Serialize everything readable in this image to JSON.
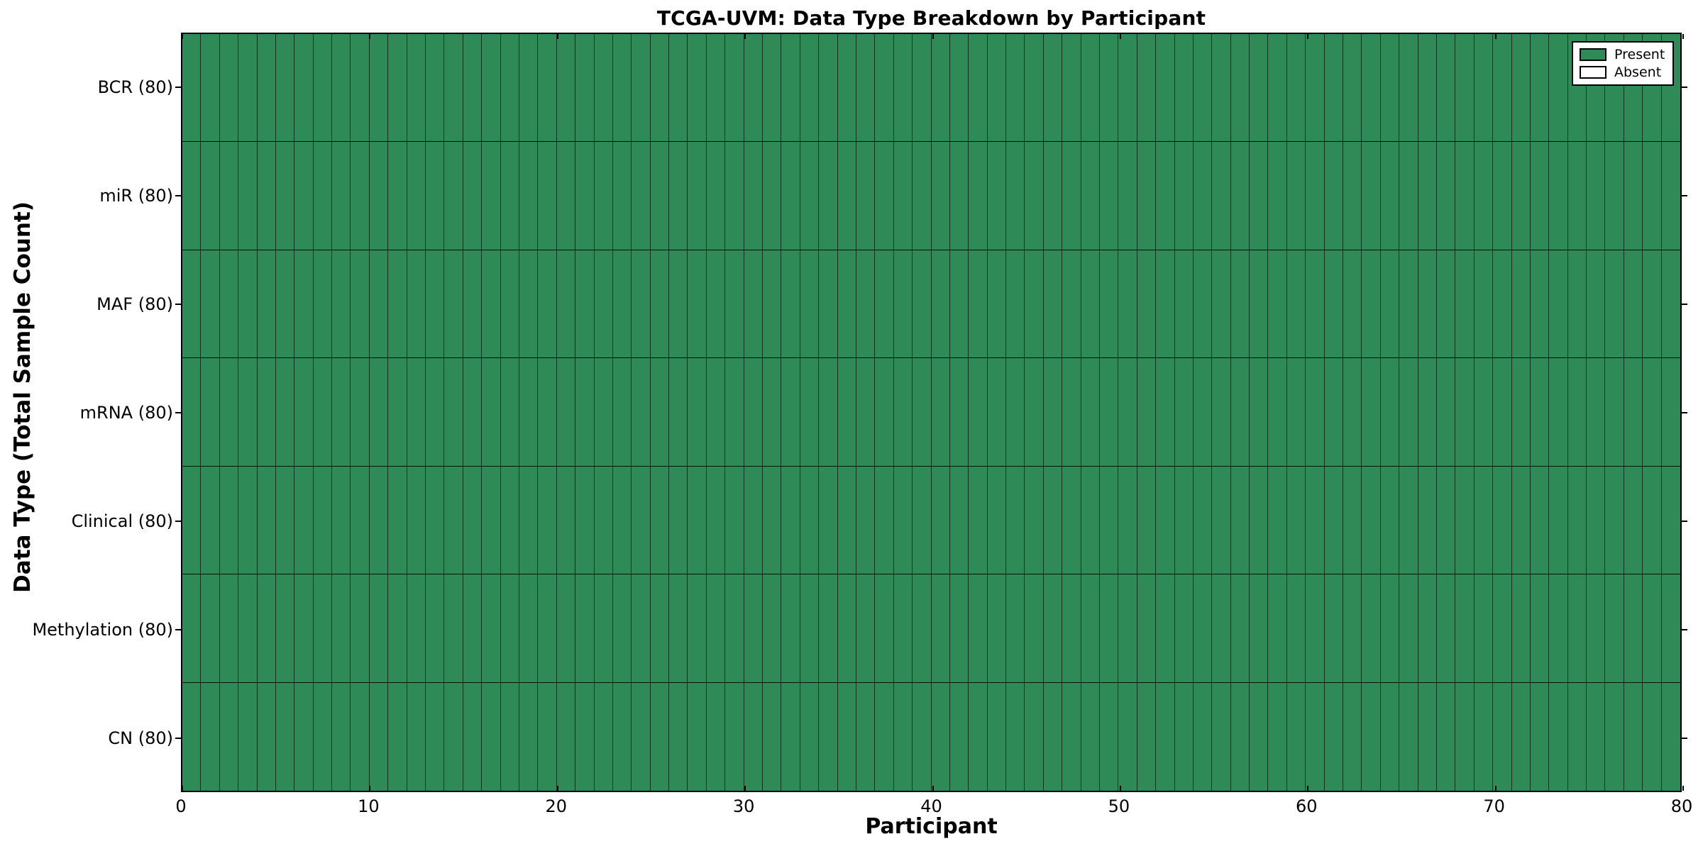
{
  "chart_data": {
    "type": "heatmap",
    "title": "TCGA-UVM: Data Type Breakdown by Participant",
    "xlabel": "Participant",
    "ylabel": "Data Type (Total Sample Count)",
    "xlim": [
      0,
      80
    ],
    "x_ticks": [
      0,
      10,
      20,
      30,
      40,
      50,
      60,
      70,
      80
    ],
    "n_participants": 80,
    "grid": true,
    "legend_position": "upper right",
    "rows": [
      {
        "label": "BCR (80)",
        "data_type": "BCR",
        "total": 80,
        "present_count": 80,
        "absent_count": 0
      },
      {
        "label": "miR (80)",
        "data_type": "miR",
        "total": 80,
        "present_count": 80,
        "absent_count": 0
      },
      {
        "label": "MAF (80)",
        "data_type": "MAF",
        "total": 80,
        "present_count": 80,
        "absent_count": 0
      },
      {
        "label": "mRNA (80)",
        "data_type": "mRNA",
        "total": 80,
        "present_count": 80,
        "absent_count": 0
      },
      {
        "label": "Clinical (80)",
        "data_type": "Clinical",
        "total": 80,
        "present_count": 80,
        "absent_count": 0
      },
      {
        "label": "Methylation (80)",
        "data_type": "Methylation",
        "total": 80,
        "present_count": 80,
        "absent_count": 0
      },
      {
        "label": "CN (80)",
        "data_type": "CN",
        "total": 80,
        "present_count": 80,
        "absent_count": 0
      }
    ],
    "legend": [
      {
        "label": "Present",
        "color": "#2E8B57"
      },
      {
        "label": "Absent",
        "color": "#FFFFFF"
      }
    ],
    "colors": {
      "present": "#2E8B57",
      "absent": "#FFFFFF",
      "grid_line": "#000000",
      "spine": "#000000",
      "background": "#FFFFFF"
    }
  }
}
